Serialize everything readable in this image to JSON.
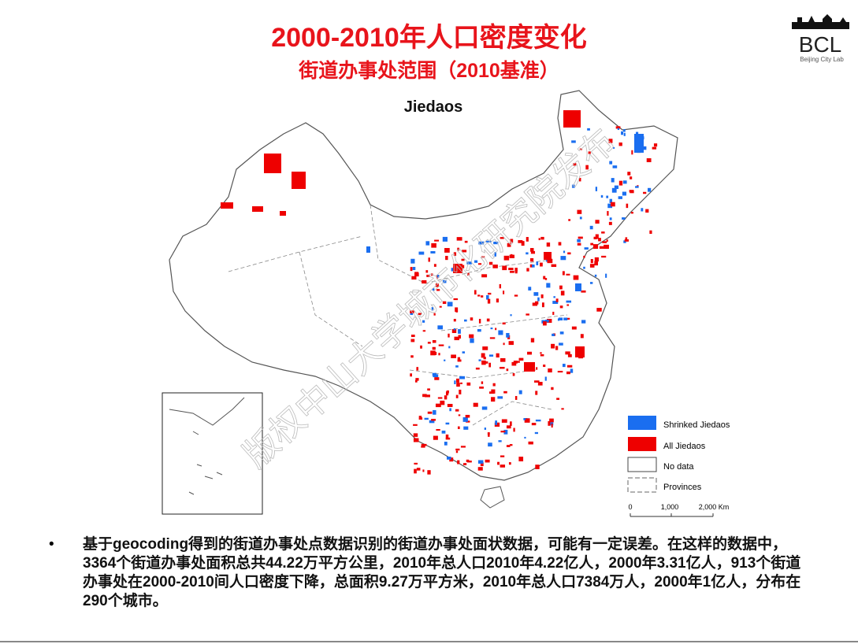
{
  "header": {
    "title": "2000-2010年人口密度变化",
    "subtitle": "街道办事处范围（2010基准）"
  },
  "logo": {
    "name": "BCL",
    "caption": "Beijing City Lab"
  },
  "map": {
    "title": "Jiedaos",
    "legend": [
      "Shrinked Jiedaos",
      "All Jiedaos",
      "No data",
      "Provinces"
    ],
    "scale": [
      "0",
      "1,000",
      "2,000 Km"
    ],
    "watermark": "版权中山大学城市化研究院发布"
  },
  "bullets": [
    "基于geocoding得到的街道办事处点数据识别的街道办事处面状数据，可能有一定误差。在这样的数据中，3364个街道办事处面积总共44.22万平方公里，2010年总人口2010年4.22亿人，2000年3.31亿人，913个街道办事处在2000-2010间人口密度下降，总面积9.27万平方米，2010年总人口7384万人，2000年1亿人，分布在290个城市。"
  ]
}
